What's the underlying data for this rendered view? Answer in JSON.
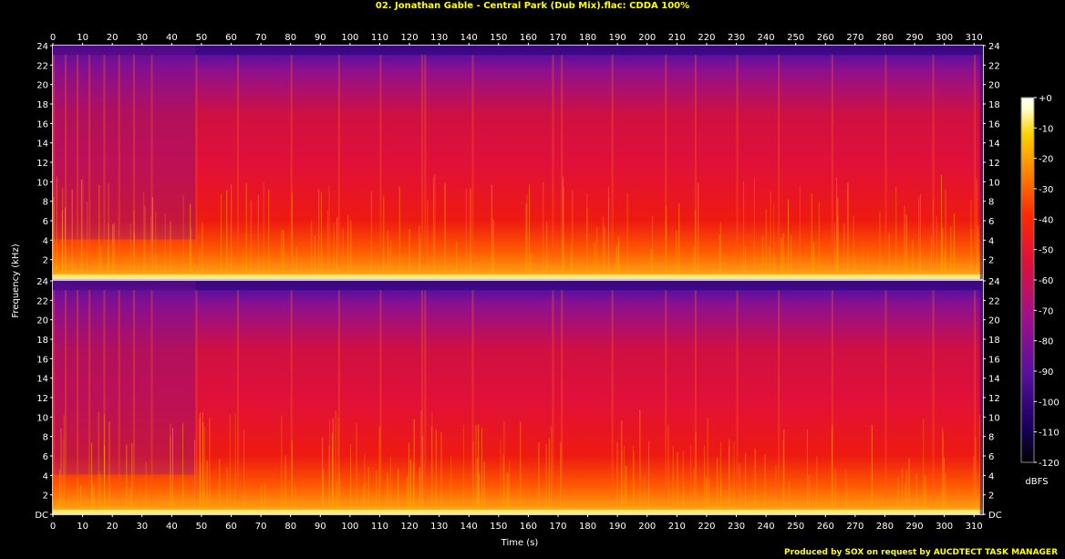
{
  "title": "02. Jonathan Gable - Central Park (Dub Mix).flac: CDDA 100%",
  "credit": "Produced by SOX on request by AUCDTECT TASK MANAGER",
  "chart_data": {
    "type": "heatmap",
    "title": "02. Jonathan Gable - Central Park (Dub Mix).flac: CDDA 100%",
    "xlabel": "Time (s)",
    "ylabel": "Frequency (kHz)",
    "xlim": [
      0,
      313
    ],
    "ylim": [
      0,
      24
    ],
    "x_ticks": [
      "0",
      "10",
      "20",
      "30",
      "40",
      "50",
      "60",
      "70",
      "80",
      "90",
      "100",
      "110",
      "120",
      "130",
      "140",
      "150",
      "160",
      "170",
      "180",
      "190",
      "200",
      "210",
      "220",
      "230",
      "240",
      "250",
      "260",
      "270",
      "280",
      "290",
      "300",
      "310"
    ],
    "y_ticks": [
      "DC",
      "2",
      "4",
      "6",
      "8",
      "10",
      "12",
      "14",
      "16",
      "18",
      "20",
      "22",
      "24"
    ],
    "channels": [
      "left",
      "right"
    ],
    "colorbar": {
      "label": "dBFS",
      "range": [
        -120,
        0
      ],
      "ticks": [
        "+0",
        "-10",
        "-20",
        "-30",
        "-40",
        "-50",
        "-60",
        "-70",
        "-80",
        "-90",
        "-100",
        "-110",
        "-120"
      ],
      "colors": [
        "#000000",
        "#1a0060",
        "#5a10a0",
        "#a0108a",
        "#e0103a",
        "#ff2a00",
        "#ff8800",
        "#ffd200",
        "#ffffc8",
        "#ffffff"
      ]
    },
    "grid": false
  }
}
